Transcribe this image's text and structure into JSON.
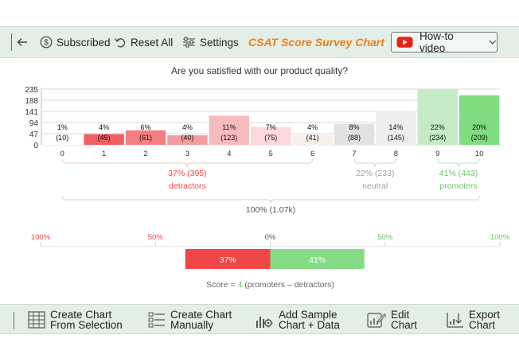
{
  "toolbar": {
    "subscribed_label": "Subscribed",
    "reset_label": "Reset All",
    "settings_label": "Settings",
    "title": "CSAT Score Survey Chart",
    "howto_label": "How-to video"
  },
  "colors": {
    "toolbar_bg": "#e3efe6",
    "title_orange": "#f07d1b",
    "detractor_red": "#e8494b",
    "neutral_gray": "#a0a0a0",
    "promoter_green": "#6cc36c"
  },
  "chart_data": {
    "type": "bar",
    "title": "Are you satisfied with our product quality?",
    "categories": [
      "0",
      "1",
      "2",
      "3",
      "4",
      "5",
      "6",
      "7",
      "8",
      "9",
      "10"
    ],
    "values": [
      10,
      45,
      61,
      40,
      123,
      75,
      41,
      88,
      145,
      234,
      209
    ],
    "percent_labels": [
      "1%",
      "4%",
      "6%",
      "4%",
      "11%",
      "7%",
      "4%",
      "8%",
      "14%",
      "22%",
      "20%"
    ],
    "value_labels": [
      "(10)",
      "(45)",
      "(61)",
      "(40)",
      "(123)",
      "(75)",
      "(41)",
      "(88)",
      "(145)",
      "(234)",
      "(209)"
    ],
    "colors": [
      "#ffffff",
      "#f25f61",
      "#f47e80",
      "#f69c9e",
      "#f8bbbc",
      "#fbd8d9",
      "#fdeeee",
      "#e1e1e1",
      "#eeeeee",
      "#c4ebc4",
      "#7fdc7f"
    ],
    "yticks": [
      "235",
      "188",
      "141",
      "94",
      "47",
      "0"
    ],
    "ylim": [
      0,
      235
    ],
    "grid": true,
    "groups": {
      "detractors": {
        "label": "37% (395)",
        "name": "detractors"
      },
      "neutral": {
        "label": "22% (233)",
        "name": "neutral"
      },
      "promoters": {
        "label": "41% (443)",
        "name": "promoters"
      },
      "total": "100% (1.07k)"
    },
    "scale_ticks": [
      "100%",
      "50%",
      "0%",
      "50%",
      "100%"
    ],
    "net": {
      "detractors_pct": 37,
      "promoters_pct": 41,
      "detractors_label": "37%",
      "promoters_label": "41%"
    },
    "score": {
      "prefix": "Score = ",
      "value": "4",
      "suffix": " (promoters  –  detractors)"
    }
  },
  "bottom_toolbar": {
    "create_selection": [
      "Create Chart",
      "From Selection"
    ],
    "create_manual": [
      "Create Chart",
      "Manually"
    ],
    "add_sample": [
      "Add Sample",
      "Chart + Data"
    ],
    "edit_chart": [
      "Edit",
      "Chart"
    ],
    "export_chart": [
      "Export",
      "Chart"
    ]
  }
}
